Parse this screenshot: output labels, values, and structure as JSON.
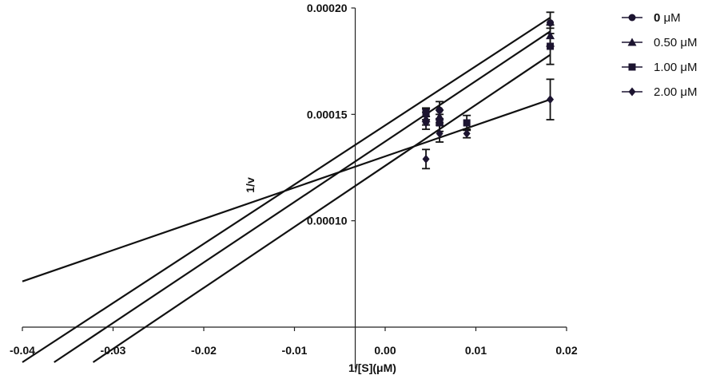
{
  "chart_data": {
    "type": "scatter",
    "title": "",
    "xlabel": "1/[S](μM)",
    "ylabel": "1/v",
    "xlim": [
      -0.04,
      0.02
    ],
    "ylim": [
      5e-05,
      0.0002
    ],
    "x_ticks": [
      -0.04,
      -0.03,
      -0.02,
      -0.01,
      0.0,
      0.01,
      0.02
    ],
    "x_tick_labels": [
      "-0.04",
      "-0.03",
      "-0.02",
      "-0.01",
      "0.00",
      "0.01",
      "0.02"
    ],
    "y_ticks": [
      0.0001,
      0.00015,
      0.0002
    ],
    "y_tick_labels": [
      "0.00010",
      "0.00015",
      "0.00020"
    ],
    "axis_crossing_x": -0.0033,
    "grid": false,
    "legend_position": "right",
    "colors": {
      "line": "#111111",
      "marker": "#1c1430",
      "axis": "#222222"
    },
    "series": [
      {
        "name_bold": "0",
        "name_unit": "μM",
        "marker": "circle",
        "points": [
          {
            "x": 0.0045,
            "y": 0.00015,
            "err": 2.5e-06
          },
          {
            "x": 0.006,
            "y": 0.000152,
            "err": 4e-06
          },
          {
            "x": 0.0182,
            "y": 0.000193,
            "err": 5e-06
          }
        ],
        "line": {
          "x1": -0.04,
          "y1": 3.35e-05,
          "x2": 0.0182,
          "y2": 0.0001955
        }
      },
      {
        "name_bold": "",
        "name_unit": "0.50 μM",
        "marker": "triangle",
        "points": [
          {
            "x": 0.0045,
            "y": 0.000148,
            "err": 3e-06
          },
          {
            "x": 0.006,
            "y": 0.000149,
            "err": 3e-06
          },
          {
            "x": 0.0182,
            "y": 0.000187,
            "err": 5e-06
          }
        ],
        "line": {
          "x1": -0.0365,
          "y1": 3.35e-05,
          "x2": 0.0182,
          "y2": 0.000189
        }
      },
      {
        "name_bold": "",
        "name_unit": "1.00 μM",
        "marker": "square",
        "points": [
          {
            "x": 0.0045,
            "y": 0.000151,
            "err": 2e-06
          },
          {
            "x": 0.006,
            "y": 0.000146,
            "err": 4e-06
          },
          {
            "x": 0.009,
            "y": 0.000146,
            "err": 3.5e-06
          },
          {
            "x": 0.0182,
            "y": 0.000182,
            "err": 8.5e-06
          }
        ],
        "line": {
          "x1": -0.0322,
          "y1": 3.35e-05,
          "x2": 0.0182,
          "y2": 0.000178
        }
      },
      {
        "name_bold": "",
        "name_unit": "2.00 μM",
        "marker": "diamond",
        "points": [
          {
            "x": 0.0045,
            "y": 0.000129,
            "err": 4.5e-06
          },
          {
            "x": 0.0045,
            "y": 0.000146,
            "err": 3e-06
          },
          {
            "x": 0.006,
            "y": 0.000141,
            "err": 4e-06
          },
          {
            "x": 0.009,
            "y": 0.000141,
            "err": 2e-06
          },
          {
            "x": 0.0182,
            "y": 0.000157,
            "err": 9.5e-06
          }
        ],
        "line": {
          "x1": -0.04,
          "y1": 7.15e-05,
          "x2": 0.0182,
          "y2": 0.000157
        }
      }
    ]
  }
}
